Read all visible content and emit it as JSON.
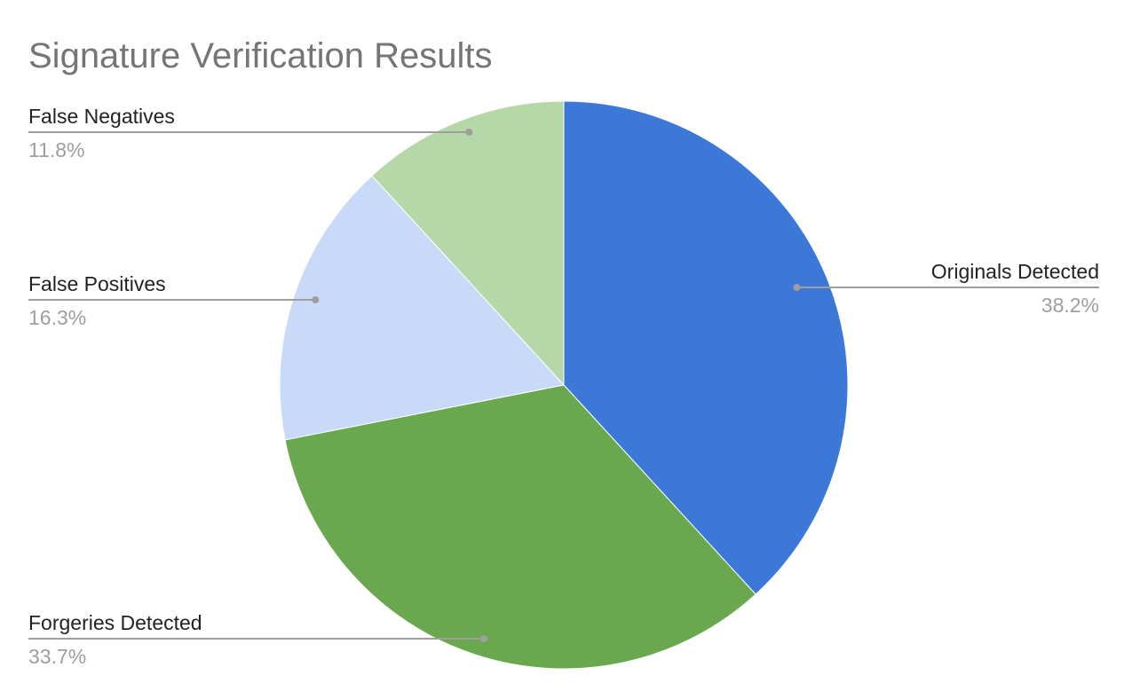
{
  "chart_data": {
    "type": "pie",
    "title": "Signature Verification Results",
    "start_angle_deg": 0,
    "direction": "clockwise",
    "slices": [
      {
        "label": "Originals Detected",
        "value": 38.2,
        "display": "38.2%",
        "color": "#3c78d8"
      },
      {
        "label": "Forgeries Detected",
        "value": 33.7,
        "display": "33.7%",
        "color": "#6aa84f"
      },
      {
        "label": "False Positives",
        "value": 16.3,
        "display": "16.3%",
        "color": "#c9daf8"
      },
      {
        "label": "False Negatives",
        "value": 11.8,
        "display": "11.8%",
        "color": "#b6d7a8"
      }
    ],
    "legend": "none",
    "label_style": "leader-lines"
  }
}
